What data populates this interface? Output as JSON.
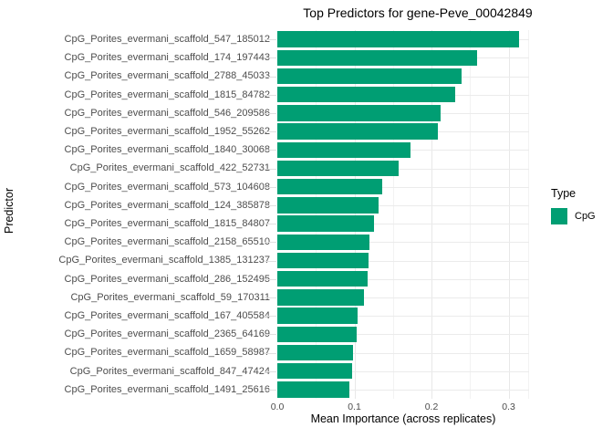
{
  "chart_data": {
    "type": "bar",
    "orientation": "horizontal",
    "title": "Top Predictors for gene-Peve_00042849",
    "xlabel": "Mean Importance (across replicates)",
    "ylabel": "Predictor",
    "categories": [
      "CpG_Porites_evermani_scaffold_547_185012",
      "CpG_Porites_evermani_scaffold_174_197443",
      "CpG_Porites_evermani_scaffold_2788_45033",
      "CpG_Porites_evermani_scaffold_1815_84782",
      "CpG_Porites_evermani_scaffold_546_209586",
      "CpG_Porites_evermani_scaffold_1952_55262",
      "CpG_Porites_evermani_scaffold_1840_30068",
      "CpG_Porites_evermani_scaffold_422_52731",
      "CpG_Porites_evermani_scaffold_573_104608",
      "CpG_Porites_evermani_scaffold_124_385878",
      "CpG_Porites_evermani_scaffold_1815_84807",
      "CpG_Porites_evermani_scaffold_2158_65510",
      "CpG_Porites_evermani_scaffold_1385_131237",
      "CpG_Porites_evermani_scaffold_286_152495",
      "CpG_Porites_evermani_scaffold_59_170311",
      "CpG_Porites_evermani_scaffold_167_405584",
      "CpG_Porites_evermani_scaffold_2365_64169",
      "CpG_Porites_evermani_scaffold_1659_58987",
      "CpG_Porites_evermani_scaffold_847_47424",
      "CpG_Porites_evermani_scaffold_1491_25616"
    ],
    "values": [
      0.313,
      0.259,
      0.239,
      0.231,
      0.212,
      0.208,
      0.173,
      0.157,
      0.136,
      0.131,
      0.126,
      0.119,
      0.118,
      0.117,
      0.112,
      0.104,
      0.103,
      0.098,
      0.097,
      0.093
    ],
    "x_tick_labels": [
      "0.0",
      "0.1",
      "0.2",
      "0.3"
    ],
    "x_tick_values": [
      0.0,
      0.1,
      0.2,
      0.3
    ],
    "x_minor_values": [
      0.05,
      0.15,
      0.25
    ],
    "xlim": [
      0,
      0.3266
    ],
    "grid": true,
    "legend": {
      "title": "Type",
      "position": "right",
      "items": [
        {
          "label": "CpG",
          "color": "#009E73"
        }
      ]
    },
    "colors": {
      "bar": "#009E73",
      "grid_major": "#e8e8e8",
      "grid_minor": "#f2f2f2",
      "axis_text": "#4d4d4d",
      "title_text": "#000000",
      "background": "#ffffff"
    }
  }
}
